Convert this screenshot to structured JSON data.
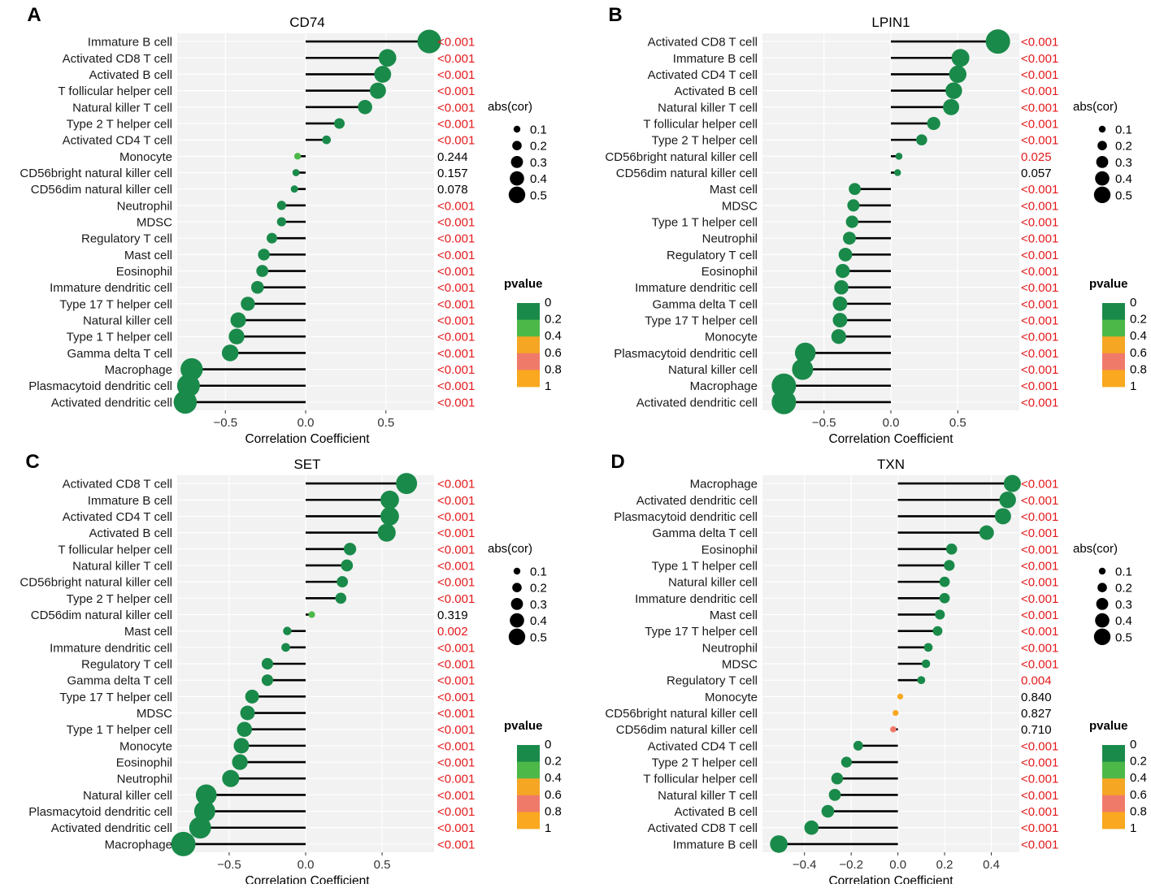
{
  "chart_data": [
    {
      "type": "lollipop",
      "panel_label": "A",
      "title": "CD74",
      "xlabel": "Correlation Coefficient",
      "xlim": [
        -0.8,
        0.8
      ],
      "xticks": [
        -0.5,
        0.0,
        0.5
      ],
      "xtick_labels": [
        "−0.5",
        "0.0",
        "0.5"
      ],
      "size_legend": {
        "title": "abs(cor)",
        "labels": [
          "0.1",
          "0.2",
          "0.3",
          "0.4",
          "0.5"
        ]
      },
      "color_legend": {
        "title": "pvalue",
        "labels": [
          "0",
          "0.2",
          "0.4",
          "0.6",
          "0.8",
          "1"
        ]
      },
      "rows": [
        {
          "cell": "Immature  B cell",
          "cor": 0.77,
          "p": 0.0,
          "p_label": "<0.001",
          "sig": true
        },
        {
          "cell": "Activated CD8 T cell",
          "cor": 0.51,
          "p": 0.0,
          "p_label": "<0.001",
          "sig": true
        },
        {
          "cell": "Activated B cell",
          "cor": 0.48,
          "p": 0.0,
          "p_label": "<0.001",
          "sig": true
        },
        {
          "cell": "T follicular helper cell",
          "cor": 0.45,
          "p": 0.0,
          "p_label": "<0.001",
          "sig": true
        },
        {
          "cell": "Natural killer T cell",
          "cor": 0.37,
          "p": 0.0,
          "p_label": "<0.001",
          "sig": true
        },
        {
          "cell": "Type 2 T helper cell",
          "cor": 0.21,
          "p": 0.0,
          "p_label": "<0.001",
          "sig": true
        },
        {
          "cell": "Activated CD4 T cell",
          "cor": 0.13,
          "p": 0.0,
          "p_label": "<0.001",
          "sig": true
        },
        {
          "cell": "Monocyte",
          "cor": -0.05,
          "p": 0.244,
          "p_label": "0.244",
          "sig": false
        },
        {
          "cell": "CD56bright natural killer cell",
          "cor": -0.06,
          "p": 0.157,
          "p_label": "0.157",
          "sig": false
        },
        {
          "cell": "CD56dim natural killer cell",
          "cor": -0.07,
          "p": 0.078,
          "p_label": "0.078",
          "sig": false
        },
        {
          "cell": "Neutrophil",
          "cor": -0.15,
          "p": 0.0,
          "p_label": "<0.001",
          "sig": true
        },
        {
          "cell": "MDSC",
          "cor": -0.15,
          "p": 0.0,
          "p_label": "<0.001",
          "sig": true
        },
        {
          "cell": "Regulatory T cell",
          "cor": -0.21,
          "p": 0.0,
          "p_label": "<0.001",
          "sig": true
        },
        {
          "cell": "Mast cell",
          "cor": -0.26,
          "p": 0.0,
          "p_label": "<0.001",
          "sig": true
        },
        {
          "cell": "Eosinophil",
          "cor": -0.27,
          "p": 0.0,
          "p_label": "<0.001",
          "sig": true
        },
        {
          "cell": "Immature dendritic cell",
          "cor": -0.3,
          "p": 0.0,
          "p_label": "<0.001",
          "sig": true
        },
        {
          "cell": "Type 17 T helper cell",
          "cor": -0.36,
          "p": 0.0,
          "p_label": "<0.001",
          "sig": true
        },
        {
          "cell": "Natural killer cell",
          "cor": -0.42,
          "p": 0.0,
          "p_label": "<0.001",
          "sig": true
        },
        {
          "cell": "Type 1 T helper cell",
          "cor": -0.43,
          "p": 0.0,
          "p_label": "<0.001",
          "sig": true
        },
        {
          "cell": "Gamma delta T cell",
          "cor": -0.47,
          "p": 0.0,
          "p_label": "<0.001",
          "sig": true
        },
        {
          "cell": "Macrophage",
          "cor": -0.71,
          "p": 0.0,
          "p_label": "<0.001",
          "sig": true
        },
        {
          "cell": "Plasmacytoid dendritic cell",
          "cor": -0.73,
          "p": 0.0,
          "p_label": "<0.001",
          "sig": true
        },
        {
          "cell": "Activated dendritic cell",
          "cor": -0.75,
          "p": 0.0,
          "p_label": "<0.001",
          "sig": true
        }
      ]
    },
    {
      "type": "lollipop",
      "panel_label": "B",
      "title": "LPIN1",
      "xlabel": "Correlation Coefficient",
      "xlim": [
        -0.96,
        0.96
      ],
      "xticks": [
        -0.5,
        0.0,
        0.5
      ],
      "xtick_labels": [
        "−0.5",
        "0.0",
        "0.5"
      ],
      "size_legend": {
        "title": "abs(cor)",
        "labels": [
          "0.1",
          "0.2",
          "0.3",
          "0.4",
          "0.5"
        ]
      },
      "color_legend": {
        "title": "pvalue",
        "labels": [
          "0",
          "0.2",
          "0.4",
          "0.6",
          "0.8",
          "1"
        ]
      },
      "rows": [
        {
          "cell": "Activated CD8 T cell",
          "cor": 0.8,
          "p": 0.0,
          "p_label": "<0.001",
          "sig": true
        },
        {
          "cell": "Immature  B cell",
          "cor": 0.52,
          "p": 0.0,
          "p_label": "<0.001",
          "sig": true
        },
        {
          "cell": "Activated CD4 T cell",
          "cor": 0.5,
          "p": 0.0,
          "p_label": "<0.001",
          "sig": true
        },
        {
          "cell": "Activated B cell",
          "cor": 0.47,
          "p": 0.0,
          "p_label": "<0.001",
          "sig": true
        },
        {
          "cell": "Natural killer T cell",
          "cor": 0.45,
          "p": 0.0,
          "p_label": "<0.001",
          "sig": true
        },
        {
          "cell": "T follicular helper cell",
          "cor": 0.32,
          "p": 0.0,
          "p_label": "<0.001",
          "sig": true
        },
        {
          "cell": "Type 2 T helper cell",
          "cor": 0.23,
          "p": 0.0,
          "p_label": "<0.001",
          "sig": true
        },
        {
          "cell": "CD56bright natural killer cell",
          "cor": 0.06,
          "p": 0.025,
          "p_label": "0.025",
          "sig": true
        },
        {
          "cell": "CD56dim natural killer cell",
          "cor": 0.05,
          "p": 0.057,
          "p_label": "0.057",
          "sig": false
        },
        {
          "cell": "Mast cell",
          "cor": -0.27,
          "p": 0.0,
          "p_label": "<0.001",
          "sig": true
        },
        {
          "cell": "MDSC",
          "cor": -0.28,
          "p": 0.0,
          "p_label": "<0.001",
          "sig": true
        },
        {
          "cell": "Type 1 T helper cell",
          "cor": -0.29,
          "p": 0.0,
          "p_label": "<0.001",
          "sig": true
        },
        {
          "cell": "Neutrophil",
          "cor": -0.31,
          "p": 0.0,
          "p_label": "<0.001",
          "sig": true
        },
        {
          "cell": "Regulatory T cell",
          "cor": -0.34,
          "p": 0.0,
          "p_label": "<0.001",
          "sig": true
        },
        {
          "cell": "Eosinophil",
          "cor": -0.36,
          "p": 0.0,
          "p_label": "<0.001",
          "sig": true
        },
        {
          "cell": "Immature dendritic cell",
          "cor": -0.37,
          "p": 0.0,
          "p_label": "<0.001",
          "sig": true
        },
        {
          "cell": "Gamma delta T cell",
          "cor": -0.38,
          "p": 0.0,
          "p_label": "<0.001",
          "sig": true
        },
        {
          "cell": "Type 17 T helper cell",
          "cor": -0.38,
          "p": 0.0,
          "p_label": "<0.001",
          "sig": true
        },
        {
          "cell": "Monocyte",
          "cor": -0.39,
          "p": 0.0,
          "p_label": "<0.001",
          "sig": true
        },
        {
          "cell": "Plasmacytoid dendritic cell",
          "cor": -0.64,
          "p": 0.0,
          "p_label": "<0.001",
          "sig": true
        },
        {
          "cell": "Natural killer cell",
          "cor": -0.66,
          "p": 0.0,
          "p_label": "<0.001",
          "sig": true
        },
        {
          "cell": "Macrophage",
          "cor": -0.8,
          "p": 0.0,
          "p_label": "<0.001",
          "sig": true
        },
        {
          "cell": "Activated dendritic cell",
          "cor": -0.8,
          "p": 0.0,
          "p_label": "<0.001",
          "sig": true
        }
      ]
    },
    {
      "type": "lollipop",
      "panel_label": "C",
      "title": "SET",
      "xlabel": "Correlation Coefficient",
      "xlim": [
        -0.84,
        0.84
      ],
      "xticks": [
        -0.5,
        0.0,
        0.5
      ],
      "xtick_labels": [
        "−0.5",
        "0.0",
        "0.5"
      ],
      "size_legend": {
        "title": "abs(cor)",
        "labels": [
          "0.1",
          "0.2",
          "0.3",
          "0.4",
          "0.5"
        ]
      },
      "color_legend": {
        "title": "pvalue",
        "labels": [
          "0",
          "0.2",
          "0.4",
          "0.6",
          "0.8",
          "1"
        ]
      },
      "rows": [
        {
          "cell": "Activated CD8 T cell",
          "cor": 0.66,
          "p": 0.0,
          "p_label": "<0.001",
          "sig": true
        },
        {
          "cell": "Immature  B cell",
          "cor": 0.55,
          "p": 0.0,
          "p_label": "<0.001",
          "sig": true
        },
        {
          "cell": "Activated CD4 T cell",
          "cor": 0.55,
          "p": 0.0,
          "p_label": "<0.001",
          "sig": true
        },
        {
          "cell": "Activated B cell",
          "cor": 0.53,
          "p": 0.0,
          "p_label": "<0.001",
          "sig": true
        },
        {
          "cell": "T follicular helper cell",
          "cor": 0.29,
          "p": 0.0,
          "p_label": "<0.001",
          "sig": true
        },
        {
          "cell": "Natural killer T cell",
          "cor": 0.27,
          "p": 0.0,
          "p_label": "<0.001",
          "sig": true
        },
        {
          "cell": "CD56bright natural killer cell",
          "cor": 0.24,
          "p": 0.0,
          "p_label": "<0.001",
          "sig": true
        },
        {
          "cell": "Type 2 T helper cell",
          "cor": 0.23,
          "p": 0.0,
          "p_label": "<0.001",
          "sig": true
        },
        {
          "cell": "CD56dim natural killer cell",
          "cor": 0.04,
          "p": 0.319,
          "p_label": "0.319",
          "sig": false
        },
        {
          "cell": "Mast cell",
          "cor": -0.12,
          "p": 0.002,
          "p_label": "0.002",
          "sig": true
        },
        {
          "cell": "Immature dendritic cell",
          "cor": -0.13,
          "p": 0.0,
          "p_label": "<0.001",
          "sig": true
        },
        {
          "cell": "Regulatory T cell",
          "cor": -0.25,
          "p": 0.0,
          "p_label": "<0.001",
          "sig": true
        },
        {
          "cell": "Gamma delta T cell",
          "cor": -0.25,
          "p": 0.0,
          "p_label": "<0.001",
          "sig": true
        },
        {
          "cell": "Type 17 T helper cell",
          "cor": -0.35,
          "p": 0.0,
          "p_label": "<0.001",
          "sig": true
        },
        {
          "cell": "MDSC",
          "cor": -0.38,
          "p": 0.0,
          "p_label": "<0.001",
          "sig": true
        },
        {
          "cell": "Type 1 T helper cell",
          "cor": -0.4,
          "p": 0.0,
          "p_label": "<0.001",
          "sig": true
        },
        {
          "cell": "Monocyte",
          "cor": -0.42,
          "p": 0.0,
          "p_label": "<0.001",
          "sig": true
        },
        {
          "cell": "Eosinophil",
          "cor": -0.43,
          "p": 0.0,
          "p_label": "<0.001",
          "sig": true
        },
        {
          "cell": "Neutrophil",
          "cor": -0.49,
          "p": 0.0,
          "p_label": "<0.001",
          "sig": true
        },
        {
          "cell": "Natural killer cell",
          "cor": -0.65,
          "p": 0.0,
          "p_label": "<0.001",
          "sig": true
        },
        {
          "cell": "Plasmacytoid dendritic cell",
          "cor": -0.66,
          "p": 0.0,
          "p_label": "<0.001",
          "sig": true
        },
        {
          "cell": "Activated dendritic cell",
          "cor": -0.69,
          "p": 0.0,
          "p_label": "<0.001",
          "sig": true
        },
        {
          "cell": "Macrophage",
          "cor": -0.8,
          "p": 0.0,
          "p_label": "<0.001",
          "sig": true
        }
      ]
    },
    {
      "type": "lollipop",
      "panel_label": "D",
      "title": "TXN",
      "xlabel": "Correlation Coefficient",
      "xlim": [
        -0.58,
        0.52
      ],
      "xticks": [
        -0.4,
        -0.2,
        0.0,
        0.2,
        0.4
      ],
      "xtick_labels": [
        "−0.4",
        "−0.2",
        "0.0",
        "0.2",
        "0.4"
      ],
      "size_legend": {
        "title": "abs(cor)",
        "labels": [
          "0.1",
          "0.2",
          "0.3",
          "0.4",
          "0.5"
        ]
      },
      "color_legend": {
        "title": "pvalue",
        "labels": [
          "0",
          "0.2",
          "0.4",
          "0.6",
          "0.8",
          "1"
        ]
      },
      "rows": [
        {
          "cell": "Macrophage",
          "cor": 0.49,
          "p": 0.0,
          "p_label": "<0.001",
          "sig": true
        },
        {
          "cell": "Activated dendritic cell",
          "cor": 0.47,
          "p": 0.0,
          "p_label": "<0.001",
          "sig": true
        },
        {
          "cell": "Plasmacytoid dendritic cell",
          "cor": 0.45,
          "p": 0.0,
          "p_label": "<0.001",
          "sig": true
        },
        {
          "cell": "Gamma delta T cell",
          "cor": 0.38,
          "p": 0.0,
          "p_label": "<0.001",
          "sig": true
        },
        {
          "cell": "Eosinophil",
          "cor": 0.23,
          "p": 0.0,
          "p_label": "<0.001",
          "sig": true
        },
        {
          "cell": "Type 1 T helper cell",
          "cor": 0.22,
          "p": 0.0,
          "p_label": "<0.001",
          "sig": true
        },
        {
          "cell": "Natural killer cell",
          "cor": 0.2,
          "p": 0.0,
          "p_label": "<0.001",
          "sig": true
        },
        {
          "cell": "Immature dendritic cell",
          "cor": 0.2,
          "p": 0.0,
          "p_label": "<0.001",
          "sig": true
        },
        {
          "cell": "Mast cell",
          "cor": 0.18,
          "p": 0.0,
          "p_label": "<0.001",
          "sig": true
        },
        {
          "cell": "Type 17 T helper cell",
          "cor": 0.17,
          "p": 0.0,
          "p_label": "<0.001",
          "sig": true
        },
        {
          "cell": "Neutrophil",
          "cor": 0.13,
          "p": 0.0,
          "p_label": "<0.001",
          "sig": true
        },
        {
          "cell": "MDSC",
          "cor": 0.12,
          "p": 0.0,
          "p_label": "<0.001",
          "sig": true
        },
        {
          "cell": "Regulatory T cell",
          "cor": 0.1,
          "p": 0.004,
          "p_label": "0.004",
          "sig": true
        },
        {
          "cell": "Monocyte",
          "cor": 0.01,
          "p": 0.84,
          "p_label": "0.840",
          "sig": false
        },
        {
          "cell": "CD56bright natural killer cell",
          "cor": -0.01,
          "p": 0.827,
          "p_label": "0.827",
          "sig": false
        },
        {
          "cell": "CD56dim natural killer cell",
          "cor": -0.02,
          "p": 0.71,
          "p_label": "0.710",
          "sig": false
        },
        {
          "cell": "Activated CD4 T cell",
          "cor": -0.17,
          "p": 0.0,
          "p_label": "<0.001",
          "sig": true
        },
        {
          "cell": "Type 2 T helper cell",
          "cor": -0.22,
          "p": 0.0,
          "p_label": "<0.001",
          "sig": true
        },
        {
          "cell": "T follicular helper cell",
          "cor": -0.26,
          "p": 0.0,
          "p_label": "<0.001",
          "sig": true
        },
        {
          "cell": "Natural killer T cell",
          "cor": -0.27,
          "p": 0.0,
          "p_label": "<0.001",
          "sig": true
        },
        {
          "cell": "Activated B cell",
          "cor": -0.3,
          "p": 0.0,
          "p_label": "<0.001",
          "sig": true
        },
        {
          "cell": "Activated CD8 T cell",
          "cor": -0.37,
          "p": 0.0,
          "p_label": "<0.001",
          "sig": true
        },
        {
          "cell": "Immature  B cell",
          "cor": -0.51,
          "p": 0.0,
          "p_label": "<0.001",
          "sig": true
        }
      ]
    }
  ],
  "colors": {
    "panel_bg": "#f2f2f2",
    "gridline": "#ffffff",
    "stem": "#000000",
    "significant_text": "#e41a1c",
    "nonsignificant_text": "#000000",
    "pvalue_scale": [
      "#1a8a4a",
      "#4cb848",
      "#f5a623",
      "#f07a6a",
      "#f9a81f"
    ]
  }
}
